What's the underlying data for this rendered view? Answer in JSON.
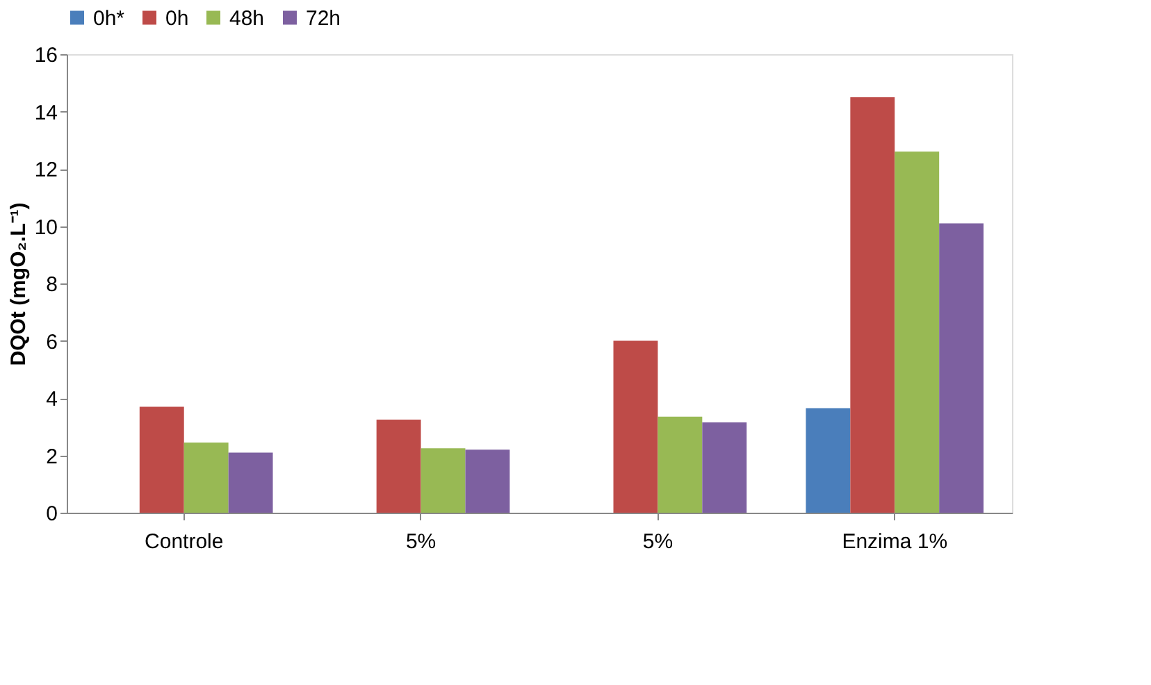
{
  "chart_data": {
    "type": "bar",
    "ylabel": "DQOt (mgO₂.L⁻¹)",
    "categories": [
      "Controle",
      "5%",
      "5%",
      "Enzima 1%"
    ],
    "series": [
      {
        "name": "0h*",
        "color": "#4a7ebb",
        "values": [
          null,
          null,
          null,
          3.65
        ]
      },
      {
        "name": "0h",
        "color": "#be4b48",
        "values": [
          3.7,
          3.25,
          6.0,
          14.5
        ]
      },
      {
        "name": "48h",
        "color": "#98b954",
        "values": [
          2.45,
          2.25,
          3.35,
          12.6
        ]
      },
      {
        "name": "72h",
        "color": "#7d60a0",
        "values": [
          2.1,
          2.2,
          3.15,
          10.1
        ]
      }
    ],
    "ylim": [
      0,
      16
    ],
    "yticks": [
      0,
      2,
      4,
      6,
      8,
      10,
      12,
      14,
      16
    ],
    "grid": false,
    "legend": "top"
  }
}
